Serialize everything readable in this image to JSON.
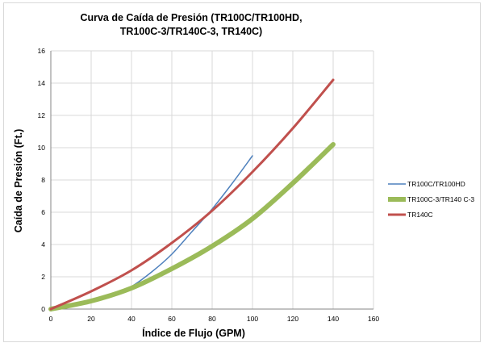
{
  "chart_data": {
    "type": "line",
    "title_lines": [
      "Curva de Caída de Presión  (TR100C/TR100HD,",
      "TR100C-3/TR140C-3, TR140C)"
    ],
    "xlabel": "Índice de Flujo (GPM)",
    "ylabel": "Caída de Presión (Ft.)",
    "xlim": [
      0,
      160
    ],
    "ylim": [
      0,
      16
    ],
    "xticks": [
      0,
      20,
      40,
      60,
      80,
      100,
      120,
      140,
      160
    ],
    "yticks": [
      0,
      2,
      4,
      6,
      8,
      10,
      12,
      14,
      16
    ],
    "grid": true,
    "legend_position": "right",
    "series": [
      {
        "name": "TR100C/TR100HD",
        "color": "#4f81bd",
        "x": [
          0,
          10,
          20,
          30,
          40,
          50,
          60,
          70,
          80,
          90,
          100
        ],
        "y": [
          0,
          0.2,
          0.5,
          0.9,
          1.4,
          2.3,
          3.4,
          4.8,
          6.2,
          7.8,
          9.5
        ]
      },
      {
        "name": "TR100C-3/TR140 C-3",
        "color": "#9bbb59",
        "x": [
          0,
          20,
          40,
          60,
          80,
          100,
          120,
          140
        ],
        "y": [
          0,
          0.5,
          1.3,
          2.5,
          3.9,
          5.6,
          7.8,
          10.2
        ]
      },
      {
        "name": "TR140C",
        "color": "#c0504d",
        "x": [
          0,
          20,
          40,
          60,
          80,
          100,
          120,
          140
        ],
        "y": [
          0,
          1.1,
          2.4,
          4.1,
          6.1,
          8.5,
          11.2,
          14.2
        ]
      }
    ]
  }
}
